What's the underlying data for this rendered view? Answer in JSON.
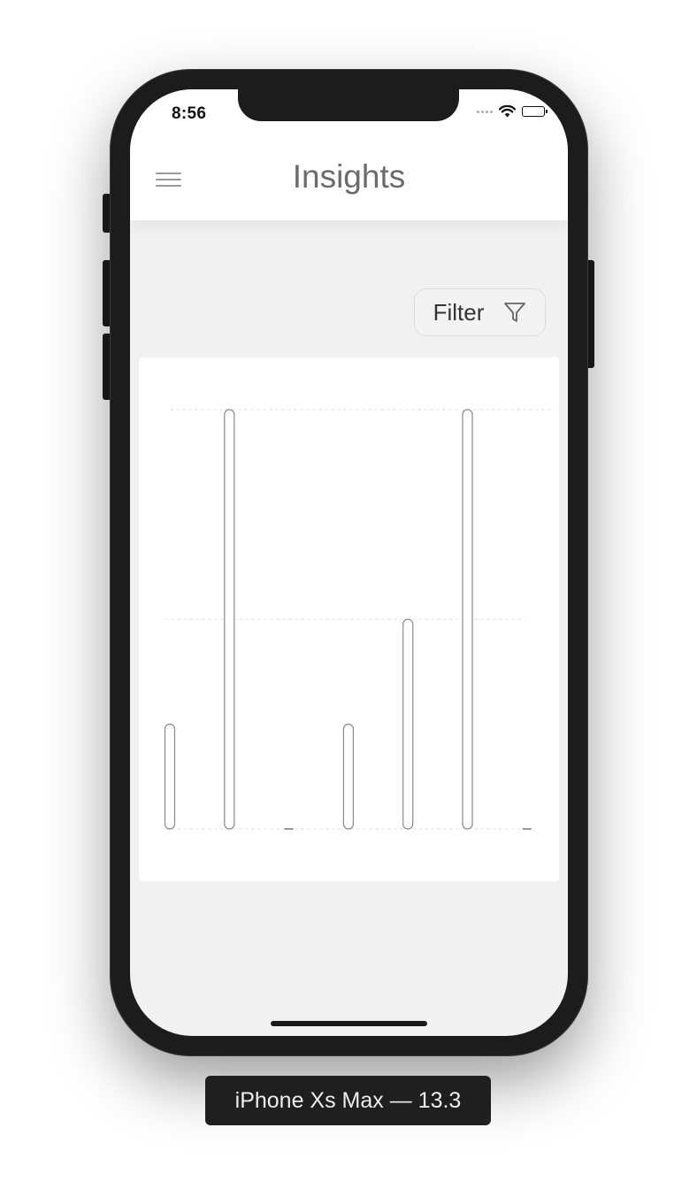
{
  "status_bar": {
    "time": "8:56",
    "icons": [
      "signal-dots-icon",
      "wifi-icon",
      "battery-icon"
    ]
  },
  "nav": {
    "title": "Insights",
    "menu_icon": "hamburger-menu-icon"
  },
  "filter": {
    "label": "Filter",
    "icon": "funnel-icon"
  },
  "chart_data": {
    "type": "bar",
    "categories": [
      "",
      "",
      "",
      "",
      "",
      "",
      ""
    ],
    "values": [
      1,
      4,
      0,
      1,
      2,
      4,
      0
    ],
    "ylim": [
      0,
      4
    ],
    "gridlines": [
      0,
      2,
      4
    ],
    "grid": true,
    "bar_fill": "#ffffff",
    "bar_stroke": "#8a8a8a"
  },
  "device_label": "iPhone Xs Max — 13.3",
  "colors": {
    "screen_bg": "#f1f1f1",
    "nav_bg": "#ffffff",
    "title": "#6b6b6b",
    "frame": "#1c1c1c"
  }
}
